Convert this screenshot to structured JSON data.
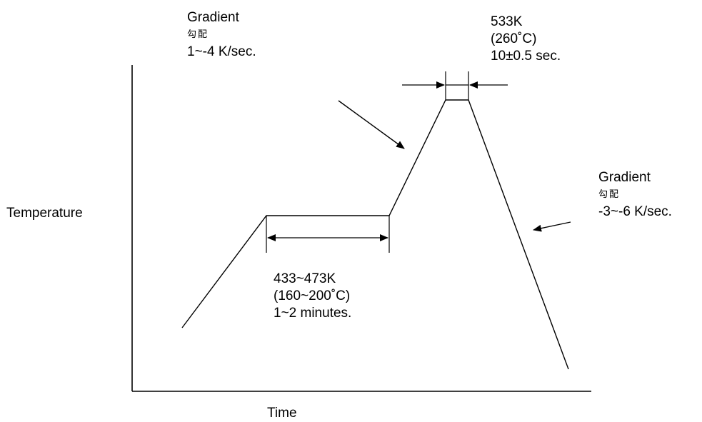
{
  "axes": {
    "y_label": "Temperature",
    "x_label": "Time"
  },
  "ramp_up_note": {
    "title": "Gradient",
    "subtitle": "勾配",
    "rate": "1~-4 K/sec."
  },
  "peak_note": {
    "temperature_k": "533K",
    "temperature_c": "(260˚C)",
    "duration": "10±0.5 sec."
  },
  "ramp_down_note": {
    "title": "Gradient",
    "subtitle": "勾配",
    "rate": "-3~-6 K/sec."
  },
  "preheat_note": {
    "temperature_k": "433~473K",
    "temperature_c": "(160~200˚C)",
    "duration": "1~2 minutes."
  },
  "colors": {
    "line": "#000000",
    "background": "#ffffff"
  }
}
